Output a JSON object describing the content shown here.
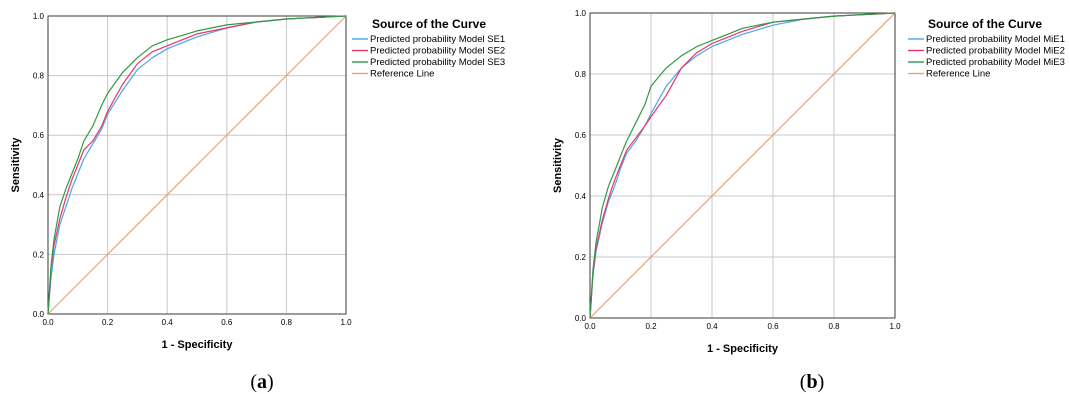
{
  "chart_data": [
    {
      "panel_label": "a",
      "type": "line",
      "xlabel": "1 - Specificity",
      "ylabel": "Sensitivity",
      "xlim": [
        0,
        1
      ],
      "ylim": [
        0,
        1
      ],
      "x_ticks": [
        "0.0",
        "0.2",
        "0.4",
        "0.6",
        "0.8",
        "1.0"
      ],
      "y_ticks": [
        "0.0",
        "0.2",
        "0.4",
        "0.6",
        "0.8",
        "1.0"
      ],
      "grid": true,
      "legend_title": "Source of the Curve",
      "legend_position": "right",
      "series": [
        {
          "name": "Predicted probability Model SE1",
          "color": "#4da6e8",
          "x": [
            0,
            0.01,
            0.02,
            0.04,
            0.06,
            0.08,
            0.1,
            0.12,
            0.15,
            0.18,
            0.2,
            0.25,
            0.3,
            0.35,
            0.4,
            0.5,
            0.6,
            0.7,
            0.8,
            0.9,
            1
          ],
          "y": [
            0,
            0.12,
            0.2,
            0.3,
            0.36,
            0.42,
            0.47,
            0.52,
            0.57,
            0.62,
            0.67,
            0.75,
            0.82,
            0.86,
            0.89,
            0.93,
            0.96,
            0.98,
            0.99,
            0.995,
            1
          ]
        },
        {
          "name": "Predicted probability Model SE2",
          "color": "#e8356b",
          "x": [
            0,
            0.01,
            0.02,
            0.04,
            0.06,
            0.08,
            0.1,
            0.12,
            0.15,
            0.18,
            0.2,
            0.25,
            0.3,
            0.35,
            0.4,
            0.5,
            0.6,
            0.7,
            0.8,
            0.9,
            1
          ],
          "y": [
            0,
            0.15,
            0.23,
            0.32,
            0.39,
            0.45,
            0.5,
            0.55,
            0.58,
            0.63,
            0.68,
            0.77,
            0.84,
            0.88,
            0.9,
            0.94,
            0.96,
            0.98,
            0.99,
            0.995,
            1
          ]
        },
        {
          "name": "Predicted probability Model SE3",
          "color": "#2e9a45",
          "x": [
            0,
            0.01,
            0.02,
            0.04,
            0.06,
            0.08,
            0.1,
            0.12,
            0.15,
            0.18,
            0.2,
            0.25,
            0.3,
            0.35,
            0.4,
            0.5,
            0.6,
            0.7,
            0.8,
            0.9,
            1
          ],
          "y": [
            0,
            0.16,
            0.25,
            0.36,
            0.42,
            0.47,
            0.52,
            0.58,
            0.63,
            0.7,
            0.74,
            0.81,
            0.86,
            0.9,
            0.92,
            0.95,
            0.97,
            0.98,
            0.99,
            0.995,
            1
          ]
        },
        {
          "name": "Reference Line",
          "color": "#f0a070",
          "x": [
            0,
            1
          ],
          "y": [
            0,
            1
          ]
        }
      ]
    },
    {
      "panel_label": "b",
      "type": "line",
      "xlabel": "1 - Specificity",
      "ylabel": "Sensitivity",
      "xlim": [
        0,
        1
      ],
      "ylim": [
        0,
        1
      ],
      "x_ticks": [
        "0.0",
        "0.2",
        "0.4",
        "0.6",
        "0.8",
        "1.0"
      ],
      "y_ticks": [
        "0.0",
        "0.2",
        "0.4",
        "0.6",
        "0.8",
        "1.0"
      ],
      "grid": true,
      "legend_title": "Source of the Curve",
      "legend_position": "right",
      "series": [
        {
          "name": "Predicted probability Model MiE1",
          "color": "#4da6e8",
          "x": [
            0,
            0.01,
            0.02,
            0.04,
            0.06,
            0.08,
            0.1,
            0.12,
            0.15,
            0.18,
            0.2,
            0.25,
            0.3,
            0.35,
            0.4,
            0.5,
            0.6,
            0.7,
            0.8,
            0.9,
            1
          ],
          "y": [
            0,
            0.14,
            0.22,
            0.31,
            0.38,
            0.43,
            0.49,
            0.54,
            0.58,
            0.63,
            0.67,
            0.76,
            0.82,
            0.86,
            0.89,
            0.93,
            0.96,
            0.98,
            0.99,
            0.995,
            1
          ]
        },
        {
          "name": "Predicted probability Model MiE2",
          "color": "#e8356b",
          "x": [
            0,
            0.01,
            0.02,
            0.04,
            0.06,
            0.08,
            0.1,
            0.12,
            0.15,
            0.18,
            0.2,
            0.25,
            0.3,
            0.35,
            0.4,
            0.5,
            0.6,
            0.7,
            0.8,
            0.9,
            1
          ],
          "y": [
            0,
            0.15,
            0.23,
            0.32,
            0.39,
            0.45,
            0.5,
            0.55,
            0.59,
            0.63,
            0.66,
            0.73,
            0.82,
            0.87,
            0.9,
            0.94,
            0.97,
            0.98,
            0.99,
            0.995,
            1
          ]
        },
        {
          "name": "Predicted probability Model MiE3",
          "color": "#2e9a45",
          "x": [
            0,
            0.01,
            0.02,
            0.04,
            0.06,
            0.08,
            0.1,
            0.12,
            0.15,
            0.18,
            0.2,
            0.25,
            0.3,
            0.35,
            0.4,
            0.5,
            0.6,
            0.7,
            0.8,
            0.9,
            1
          ],
          "y": [
            0,
            0.16,
            0.25,
            0.36,
            0.43,
            0.48,
            0.53,
            0.58,
            0.64,
            0.7,
            0.76,
            0.82,
            0.86,
            0.89,
            0.91,
            0.95,
            0.97,
            0.98,
            0.99,
            0.995,
            1
          ]
        },
        {
          "name": "Reference Line",
          "color": "#f0a070",
          "x": [
            0,
            1
          ],
          "y": [
            0,
            1
          ]
        }
      ]
    }
  ]
}
